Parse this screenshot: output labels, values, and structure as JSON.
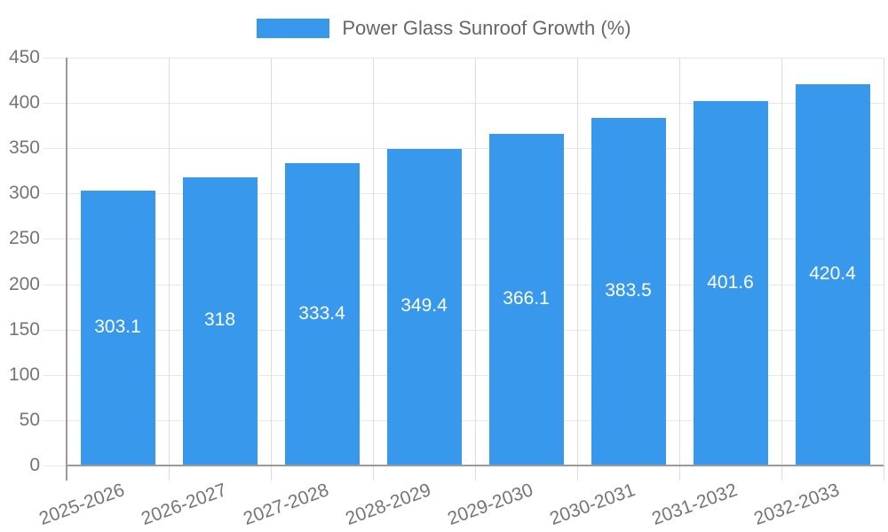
{
  "chart_data": {
    "type": "bar",
    "title": "Power Glass Sunroof Growth (%)",
    "legend": {
      "position": "top",
      "entries": [
        "Power Glass Sunroof Growth (%)"
      ]
    },
    "categories": [
      "2025-2026",
      "2026-2027",
      "2027-2028",
      "2028-2029",
      "2029-2030",
      "2030-2031",
      "2031-2032",
      "2032-2033"
    ],
    "series": [
      {
        "name": "Power Glass Sunroof Growth (%)",
        "values": [
          303.1,
          318,
          333.4,
          349.4,
          366.1,
          383.5,
          401.6,
          420.4
        ],
        "value_labels": [
          "303.1",
          "318",
          "333.4",
          "349.4",
          "366.1",
          "383.5",
          "401.6",
          "420.4"
        ]
      }
    ],
    "xlabel": "",
    "ylabel": "",
    "ylim": [
      0,
      450
    ],
    "ytick_step": 50,
    "yticks": [
      0,
      50,
      100,
      150,
      200,
      250,
      300,
      350,
      400,
      450
    ],
    "grid": true,
    "colors": {
      "bar": "#3898EC",
      "h_gridline": "#E8E8E8",
      "v_gridline": "#DDDDDD",
      "axis_line": "#9A9A9A",
      "tick_label": "#757575",
      "legend_text": "#666666",
      "bar_label": "#FFFFFF",
      "background": "#FFFFFF"
    }
  }
}
